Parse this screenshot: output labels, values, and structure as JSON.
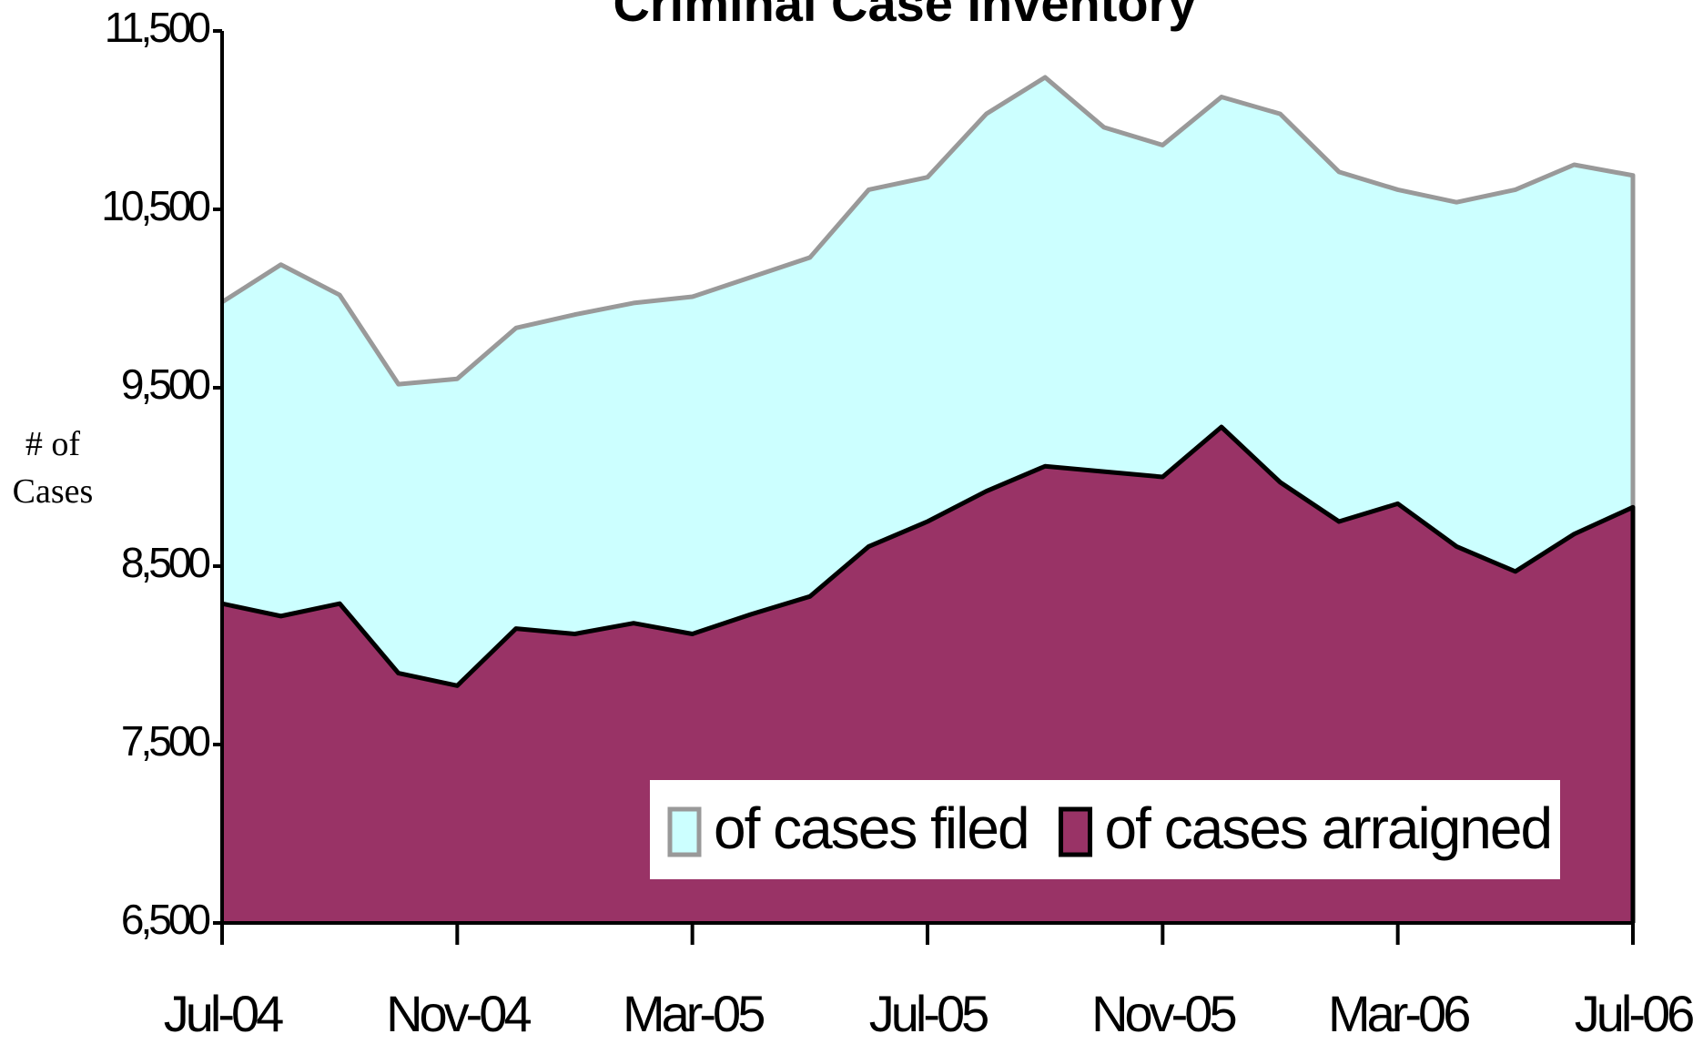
{
  "chart_data": {
    "type": "area",
    "title": "Criminal Case Inventory",
    "y_label": "# of Cases",
    "categories": [
      "Jul-04",
      null,
      null,
      null,
      "Nov-04",
      null,
      null,
      null,
      "Mar-05",
      null,
      null,
      null,
      "Jul-05",
      null,
      null,
      null,
      "Nov-05",
      null,
      null,
      null,
      "Mar-06",
      null,
      null,
      null,
      "Jul-06"
    ],
    "series": [
      {
        "name": "of cases filed",
        "color": "#ccffff",
        "line_color": "#999999",
        "values": [
          9980,
          10190,
          10020,
          9520,
          9550,
          9835,
          9910,
          9975,
          10010,
          10120,
          10230,
          10610,
          10680,
          11035,
          11240,
          10960,
          10860,
          11130,
          11035,
          10710,
          10610,
          10540,
          10610,
          10750,
          10690
        ]
      },
      {
        "name": "of cases arraigned",
        "color": "#993366",
        "line_color": "#000000",
        "values": [
          8290,
          8220,
          8290,
          7900,
          7830,
          8150,
          8120,
          8180,
          8120,
          8230,
          8330,
          8610,
          8750,
          8920,
          9060,
          9030,
          9000,
          9280,
          8970,
          8750,
          8850,
          8610,
          8470,
          8680,
          8830
        ]
      }
    ],
    "ylim": [
      6500,
      11500
    ],
    "yticks": [
      {
        "value": 6500,
        "label": "6,500"
      },
      {
        "value": 7500,
        "label": "7,500"
      },
      {
        "value": 8500,
        "label": "8,500"
      },
      {
        "value": 9500,
        "label": "9,500"
      },
      {
        "value": 10500,
        "label": "10,500"
      },
      {
        "value": 11500,
        "label": "11,500"
      }
    ],
    "grid": false,
    "legend": "bottom-right"
  }
}
